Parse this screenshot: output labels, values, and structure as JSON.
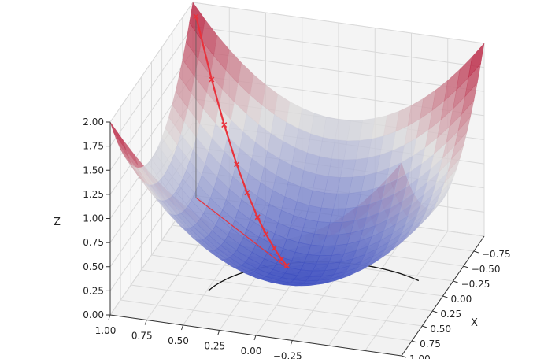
{
  "chart_data": {
    "type": "surface",
    "surface": {
      "function": "z = x^2 + y^2",
      "x_range": [
        -1.0,
        1.0
      ],
      "y_range": [
        -1.0,
        1.0
      ],
      "colormap": "coolwarm",
      "colormap_colors": [
        "#3b4cc0",
        "#dddddd",
        "#b40426"
      ]
    },
    "path": {
      "color": "#e8323c",
      "marker": "x",
      "points": [
        {
          "x": -0.97,
          "y": 0.97,
          "z": 1.88
        },
        {
          "x": -0.82,
          "y": 0.82,
          "z": 1.35
        },
        {
          "x": -0.7,
          "y": 0.7,
          "z": 0.98
        },
        {
          "x": -0.58,
          "y": 0.58,
          "z": 0.67
        },
        {
          "x": -0.48,
          "y": 0.48,
          "z": 0.46
        },
        {
          "x": -0.38,
          "y": 0.38,
          "z": 0.29
        },
        {
          "x": -0.3,
          "y": 0.3,
          "z": 0.18
        },
        {
          "x": -0.22,
          "y": 0.22,
          "z": 0.1
        },
        {
          "x": -0.15,
          "y": 0.15,
          "z": 0.045
        },
        {
          "x": -0.1,
          "y": 0.1,
          "z": 0.02
        }
      ]
    },
    "projection": {
      "line_color": "#e8323c",
      "start": {
        "x": -0.97,
        "y": 0.97
      },
      "end": {
        "x": -0.1,
        "y": 0.1
      }
    },
    "contour_color": "#111111",
    "axes": {
      "xlabel": "X",
      "ylabel": "",
      "zlabel": "Z",
      "xlim": [
        -1.0,
        1.0
      ],
      "ylim": [
        -1.0,
        1.0
      ],
      "zlim": [
        0.0,
        2.0
      ],
      "x_ticks": [
        "1.00",
        "0.75",
        "0.50",
        "0.25",
        "0.00",
        "−0.25",
        "−0.50",
        "−0.75"
      ],
      "x_tick_values": [
        1.0,
        0.75,
        0.5,
        0.25,
        0.0,
        -0.25,
        -0.5,
        -0.75
      ],
      "y_ticks": [
        "1.00",
        "0.75",
        "0.50",
        "0.25",
        "0.00",
        "−0.25"
      ],
      "y_tick_values": [
        1.0,
        0.75,
        0.5,
        0.25,
        0.0,
        -0.25
      ],
      "z_ticks": [
        "0.00",
        "0.25",
        "0.50",
        "0.75",
        "1.00",
        "1.25",
        "1.50",
        "1.75",
        "2.00"
      ],
      "z_tick_values": [
        0.0,
        0.25,
        0.5,
        0.75,
        1.0,
        1.25,
        1.5,
        1.75,
        2.0
      ],
      "grid": true
    }
  }
}
